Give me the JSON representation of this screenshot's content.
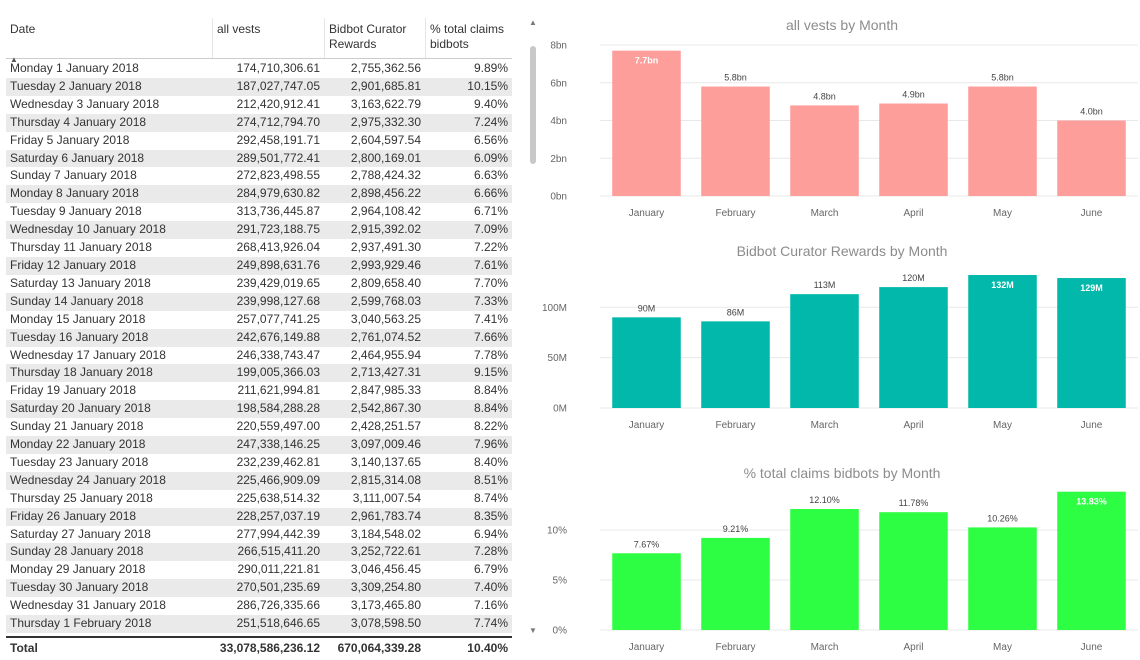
{
  "table": {
    "columns": [
      "Date",
      "all vests",
      "Bidbot Curator Rewards",
      "% total claims bidbots"
    ],
    "rows": [
      [
        "Monday 1 January 2018",
        "174,710,306.61",
        "2,755,362.56",
        "9.89%"
      ],
      [
        "Tuesday 2 January 2018",
        "187,027,747.05",
        "2,901,685.81",
        "10.15%"
      ],
      [
        "Wednesday 3 January 2018",
        "212,420,912.41",
        "3,163,622.79",
        "9.40%"
      ],
      [
        "Thursday 4 January 2018",
        "274,712,794.70",
        "2,975,332.30",
        "7.24%"
      ],
      [
        "Friday 5 January 2018",
        "292,458,191.71",
        "2,604,597.54",
        "6.56%"
      ],
      [
        "Saturday 6 January 2018",
        "289,501,772.41",
        "2,800,169.01",
        "6.09%"
      ],
      [
        "Sunday 7 January 2018",
        "272,823,498.55",
        "2,788,424.32",
        "6.63%"
      ],
      [
        "Monday 8 January 2018",
        "284,979,630.82",
        "2,898,456.22",
        "6.66%"
      ],
      [
        "Tuesday 9 January 2018",
        "313,736,445.87",
        "2,964,108.42",
        "6.71%"
      ],
      [
        "Wednesday 10 January 2018",
        "291,723,188.75",
        "2,915,392.02",
        "7.09%"
      ],
      [
        "Thursday 11 January 2018",
        "268,413,926.04",
        "2,937,491.30",
        "7.22%"
      ],
      [
        "Friday 12 January 2018",
        "249,898,631.76",
        "2,993,929.46",
        "7.61%"
      ],
      [
        "Saturday 13 January 2018",
        "239,429,019.65",
        "2,809,658.40",
        "7.70%"
      ],
      [
        "Sunday 14 January 2018",
        "239,998,127.68",
        "2,599,768.03",
        "7.33%"
      ],
      [
        "Monday 15 January 2018",
        "257,077,741.25",
        "3,040,563.25",
        "7.41%"
      ],
      [
        "Tuesday 16 January 2018",
        "242,676,149.88",
        "2,761,074.52",
        "7.66%"
      ],
      [
        "Wednesday 17 January 2018",
        "246,338,743.47",
        "2,464,955.94",
        "7.78%"
      ],
      [
        "Thursday 18 January 2018",
        "199,005,366.03",
        "2,713,427.31",
        "9.15%"
      ],
      [
        "Friday 19 January 2018",
        "211,621,994.81",
        "2,847,985.33",
        "8.84%"
      ],
      [
        "Saturday 20 January 2018",
        "198,584,288.28",
        "2,542,867.30",
        "8.84%"
      ],
      [
        "Sunday 21 January 2018",
        "220,559,497.00",
        "2,428,251.57",
        "8.22%"
      ],
      [
        "Monday 22 January 2018",
        "247,338,146.25",
        "3,097,009.46",
        "7.96%"
      ],
      [
        "Tuesday 23 January 2018",
        "232,239,462.81",
        "3,140,137.65",
        "8.40%"
      ],
      [
        "Wednesday 24 January 2018",
        "225,466,909.09",
        "2,815,314.08",
        "8.51%"
      ],
      [
        "Thursday 25 January 2018",
        "225,638,514.32",
        "3,111,007.54",
        "8.74%"
      ],
      [
        "Friday 26 January 2018",
        "228,257,037.19",
        "2,961,783.74",
        "8.35%"
      ],
      [
        "Saturday 27 January 2018",
        "277,994,442.39",
        "3,184,548.02",
        "6.94%"
      ],
      [
        "Sunday 28 January 2018",
        "266,515,411.20",
        "3,252,722.61",
        "7.28%"
      ],
      [
        "Monday 29 January 2018",
        "290,011,221.81",
        "3,046,456.45",
        "6.79%"
      ],
      [
        "Tuesday 30 January 2018",
        "270,501,235.69",
        "3,309,254.80",
        "7.40%"
      ],
      [
        "Wednesday 31 January 2018",
        "286,726,335.66",
        "3,173,465.80",
        "7.16%"
      ],
      [
        "Thursday 1 February 2018",
        "251,518,646.65",
        "3,078,598.50",
        "7.74%"
      ]
    ],
    "total": [
      "Total",
      "33,078,586,236.12",
      "670,064,339.28",
      "10.40%"
    ],
    "sort_icon": "sort-ascending-icon",
    "row_stripe_color": "#eaeaea"
  },
  "scrollbar": {
    "up_icon": "chevron-up-icon",
    "down_icon": "chevron-down-icon"
  },
  "chart_data": [
    {
      "type": "bar",
      "title": "all vests by Month",
      "categories": [
        "January",
        "February",
        "March",
        "April",
        "May",
        "June"
      ],
      "values": [
        7.7,
        5.8,
        4.8,
        4.9,
        5.8,
        4.0
      ],
      "data_labels": [
        "7.7bn",
        "5.8bn",
        "4.8bn",
        "4.9bn",
        "5.8bn",
        "4.0bn"
      ],
      "ylim": [
        0,
        8
      ],
      "yticks": [
        0,
        2,
        4,
        6,
        8
      ],
      "ytick_labels": [
        "0bn",
        "2bn",
        "4bn",
        "6bn",
        "8bn"
      ],
      "grid": true,
      "color": "#fd9e9b"
    },
    {
      "type": "bar",
      "title": "Bidbot Curator Rewards by Month",
      "categories": [
        "January",
        "February",
        "March",
        "April",
        "May",
        "June"
      ],
      "values": [
        90,
        86,
        113,
        120,
        132,
        129
      ],
      "data_labels": [
        "90M",
        "86M",
        "113M",
        "120M",
        "132M",
        "129M"
      ],
      "ylim": [
        0,
        135
      ],
      "yticks": [
        0,
        50,
        100
      ],
      "ytick_labels": [
        "0M",
        "50M",
        "100M"
      ],
      "grid": true,
      "color": "#01b8aa"
    },
    {
      "type": "bar",
      "title": "% total claims bidbots by Month",
      "categories": [
        "January",
        "February",
        "March",
        "April",
        "May",
        "June"
      ],
      "values": [
        7.67,
        9.21,
        12.1,
        11.78,
        10.26,
        13.83
      ],
      "data_labels": [
        "7.67%",
        "9.21%",
        "12.10%",
        "11.78%",
        "10.26%",
        "13.83%"
      ],
      "ylim": [
        0,
        14
      ],
      "yticks": [
        0,
        5,
        10
      ],
      "ytick_labels": [
        "0%",
        "5%",
        "10%"
      ],
      "grid": true,
      "color": "#2efe43"
    }
  ]
}
